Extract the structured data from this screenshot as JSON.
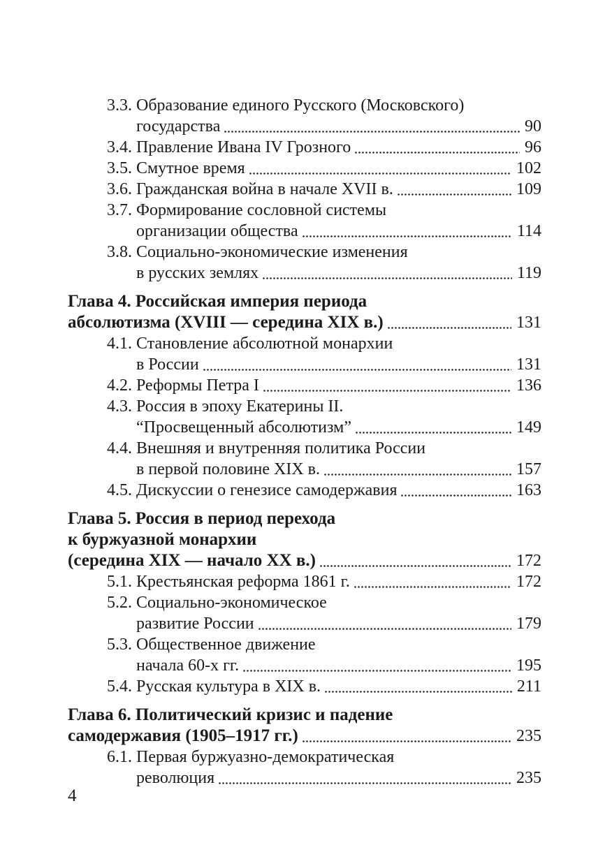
{
  "page_kind": "book-table-of-contents",
  "language": "ru",
  "folio": "4",
  "colors": {
    "paper": "#ffffff",
    "ink": "#1b1b1b",
    "dot_leader": "#222222"
  },
  "toc": {
    "entries": [
      {
        "kind": "sub",
        "num": "3.3.",
        "lines": [
          "Образование единого Русского (Московского)",
          "государства"
        ],
        "page": "90"
      },
      {
        "kind": "sub",
        "num": "3.4.",
        "lines": [
          "Правление Ивана IV Грозного"
        ],
        "page": "96"
      },
      {
        "kind": "sub",
        "num": "3.5.",
        "lines": [
          "Смутное время"
        ],
        "page": "102"
      },
      {
        "kind": "sub",
        "num": "3.6.",
        "lines": [
          "Гражданская война в начале XVII в. "
        ],
        "page": "109"
      },
      {
        "kind": "sub",
        "num": "3.7.",
        "lines": [
          "Формирование сословной системы",
          "организации общества "
        ],
        "page": "114"
      },
      {
        "kind": "sub",
        "num": "3.8.",
        "lines": [
          "Социально-экономические изменения",
          "в русских землях "
        ],
        "page": "119"
      },
      {
        "kind": "chapter",
        "num": "",
        "lines": [
          "Глава 4. Российская империя периода",
          "абсолютизма (XVIII — середина XIX в.)"
        ],
        "page": "131"
      },
      {
        "kind": "sub",
        "num": "4.1.",
        "lines": [
          "Становление абсолютной монархии",
          "в России "
        ],
        "page": "131"
      },
      {
        "kind": "sub",
        "num": "4.2.",
        "lines": [
          "Реформы Петра I"
        ],
        "page": "136"
      },
      {
        "kind": "sub",
        "num": "4.3.",
        "lines": [
          "Россия в эпоху Екатерины II.",
          "“Просвещенный абсолютизм” "
        ],
        "page": "149"
      },
      {
        "kind": "sub",
        "num": "4.4.",
        "lines": [
          "Внешняя и внутренняя политика России",
          "в первой половине XIX в."
        ],
        "page": "157"
      },
      {
        "kind": "sub",
        "num": "4.5.",
        "lines": [
          "Дискуссии о генезисе самодержавия "
        ],
        "page": "163"
      },
      {
        "kind": "chapter",
        "num": "",
        "lines": [
          "Глава 5. Россия в период перехода",
          "к буржуазной монархии",
          "(середина XIX — начало XX в.) "
        ],
        "page": "172"
      },
      {
        "kind": "sub",
        "num": "5.1.",
        "lines": [
          "Крестьянская реформа 1861 г."
        ],
        "page": "172"
      },
      {
        "kind": "sub",
        "num": "5.2.",
        "lines": [
          "Социально-экономическое",
          "развитие России "
        ],
        "page": "179"
      },
      {
        "kind": "sub",
        "num": "5.3.",
        "lines": [
          "Общественное движение",
          "начала 60-х гг. "
        ],
        "page": "195"
      },
      {
        "kind": "sub",
        "num": "5.4.",
        "lines": [
          "Русская культура в XIX в. "
        ],
        "page": "211"
      },
      {
        "kind": "chapter",
        "num": "",
        "lines": [
          "Глава 6. Политический кризис и падение",
          "самодержавия (1905–1917 гг.) "
        ],
        "page": "235"
      },
      {
        "kind": "sub",
        "num": "6.1.",
        "lines": [
          "Первая буржуазно-демократическая",
          "революция "
        ],
        "page": "235"
      }
    ]
  }
}
